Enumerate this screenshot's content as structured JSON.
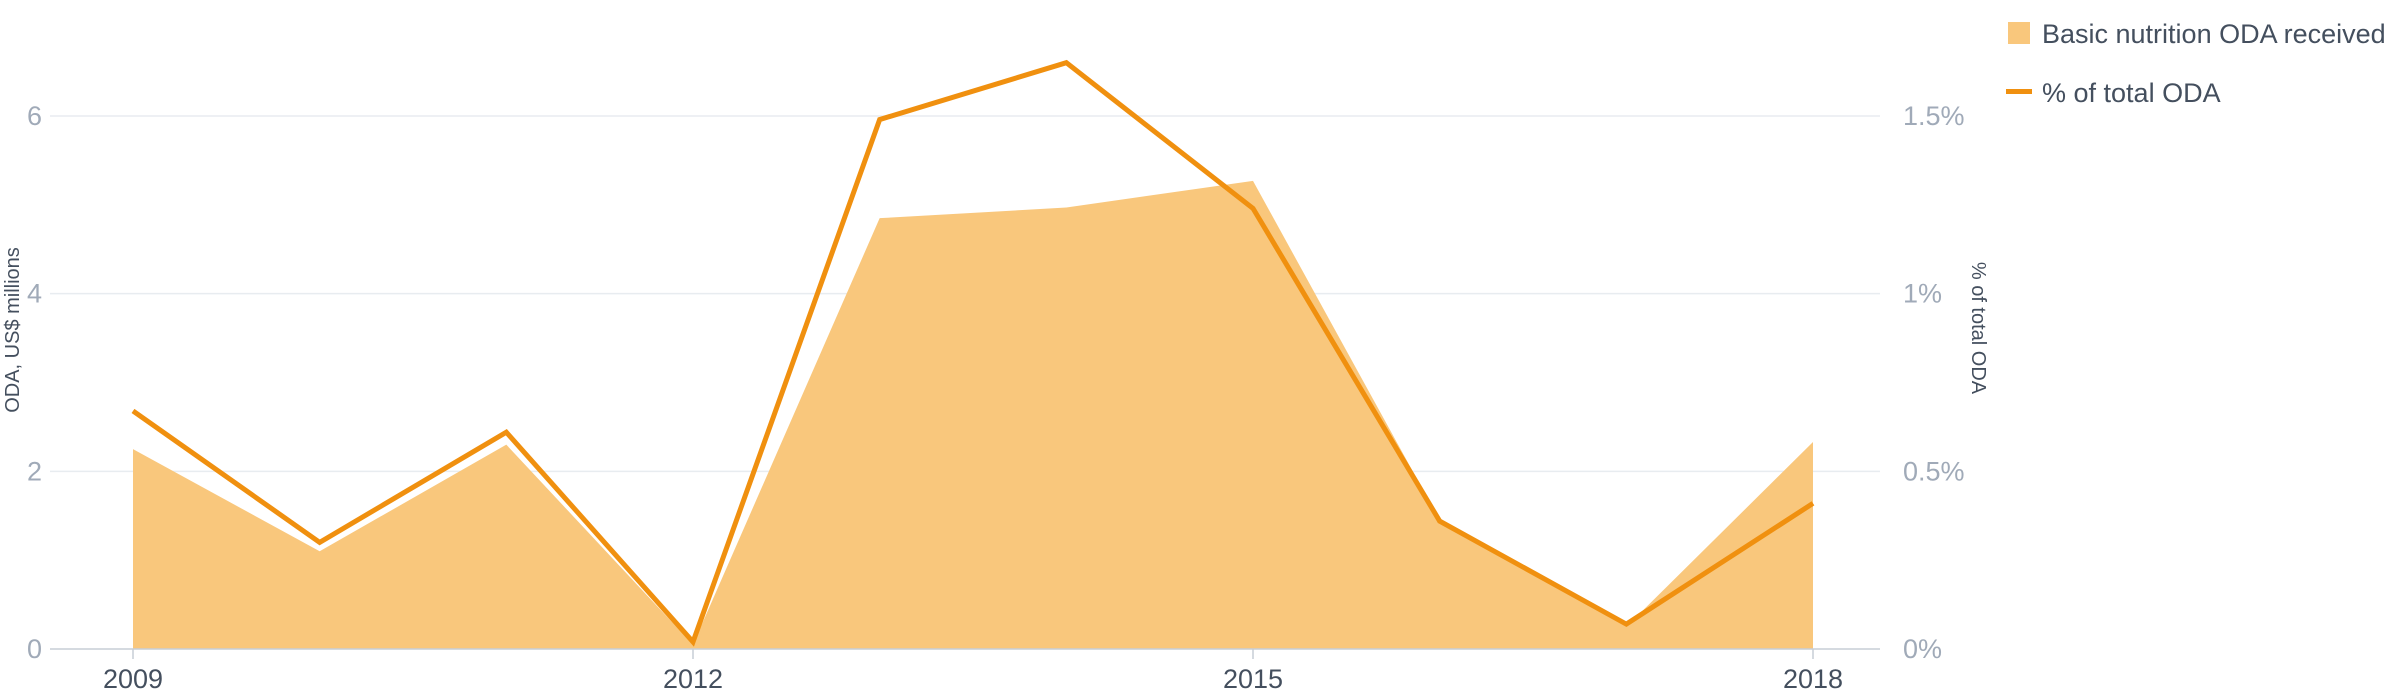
{
  "chart_data": {
    "type": "area+line",
    "x": [
      2009,
      2010,
      2011,
      2012,
      2013,
      2014,
      2015,
      2016,
      2017,
      2018
    ],
    "x_tick_labels": [
      "2009",
      "2012",
      "2015",
      "2018"
    ],
    "x_tick_values": [
      2009,
      2012,
      2015,
      2018
    ],
    "series": [
      {
        "name": "Basic nutrition ODA received",
        "kind": "area",
        "axis": "left",
        "color": "#f9c77c",
        "values": [
          2.25,
          1.1,
          2.3,
          0.05,
          4.85,
          4.97,
          5.27,
          1.45,
          0.25,
          2.33
        ]
      },
      {
        "name": "% of total ODA",
        "kind": "line",
        "axis": "right",
        "color": "#f0900f",
        "values": [
          0.67,
          0.3,
          0.61,
          0.02,
          1.49,
          1.65,
          1.24,
          0.36,
          0.07,
          0.41
        ]
      }
    ],
    "left_axis": {
      "label": "ODA, US$ millions",
      "ylim": [
        0,
        6
      ],
      "tick_values": [
        0,
        2,
        4,
        6
      ],
      "tick_labels": [
        "0",
        "2",
        "4",
        "6"
      ]
    },
    "right_axis": {
      "label": "% of total ODA",
      "ylim": [
        0,
        1.5
      ],
      "tick_values": [
        0,
        0.5,
        1,
        1.5
      ],
      "tick_labels": [
        "0%",
        "0.5%",
        "1%",
        "1.5%"
      ]
    },
    "grid": true,
    "legend_position": "top-right",
    "colors": {
      "grid": "#e8ecf0",
      "baseline": "#c7ced6",
      "tick_text": "#a0aab8",
      "label_text": "#444f5e"
    }
  }
}
